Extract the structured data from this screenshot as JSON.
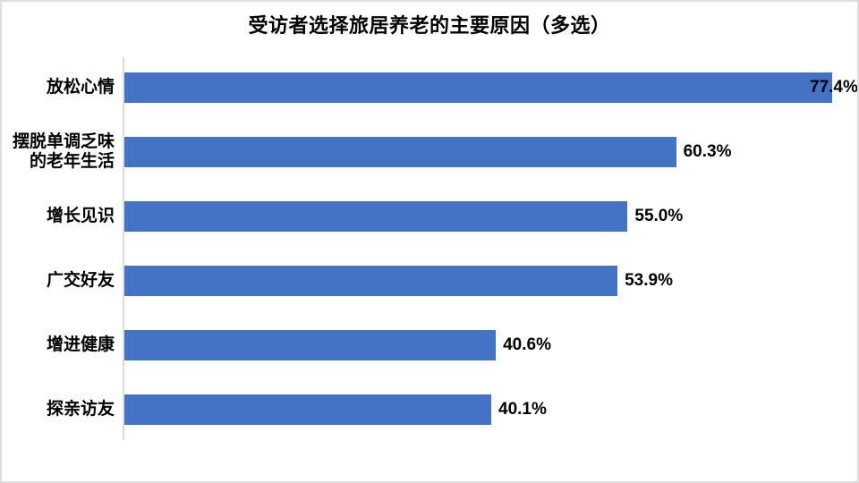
{
  "slide": {
    "title": "受访者选择旅居养老的主要原因（多选）"
  },
  "colors": {
    "bar": "#4472C4",
    "axis_line": "#DCDCDC",
    "slide_border": "#DEDEDE",
    "text": "#000000",
    "background": "#FFFFFF"
  },
  "chart_data": {
    "type": "bar",
    "orientation": "horizontal",
    "title": "受访者选择旅居养老的主要原因（多选）",
    "categories": [
      "放松心情",
      "摆脱单调乏味\n的老年生活",
      "增长见识",
      "广交好友",
      "增进健康",
      "探亲访友"
    ],
    "values": [
      77.4,
      60.3,
      55.0,
      53.9,
      40.6,
      40.1
    ],
    "value_labels": [
      "77.4%",
      "60.3%",
      "55.0%",
      "53.9%",
      "40.6%",
      "40.1%"
    ],
    "xlim": [
      0,
      80
    ],
    "xlabel": "",
    "ylabel": "",
    "grid": false,
    "legend": false,
    "data_labels_position": "outside-end",
    "bar_color": "#4472C4"
  }
}
